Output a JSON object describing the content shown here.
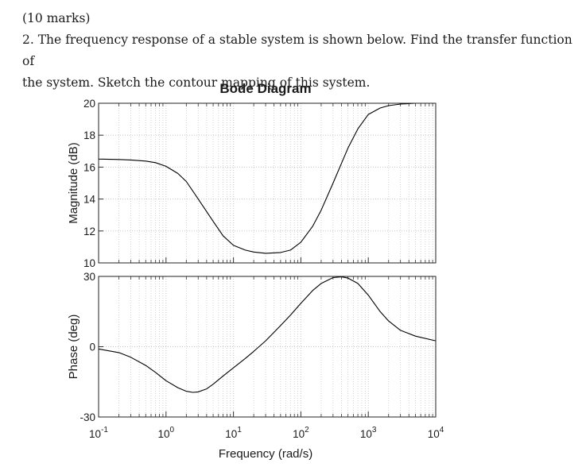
{
  "question": {
    "marks": "(10 marks)",
    "line1": "2. The frequency response of a stable system is shown below. Find the transfer function of",
    "line2": "the system. Sketch the contour mapping of this system."
  },
  "chart_data": {
    "type": "line",
    "title": "Bode Diagram",
    "xlabel": "Frequency (rad/s)",
    "xscale": "log",
    "xlim": [
      0.1,
      10000
    ],
    "x_ticks": [
      {
        "value": 0.1,
        "base": "10",
        "exp": "-1"
      },
      {
        "value": 1,
        "base": "10",
        "exp": "0"
      },
      {
        "value": 10,
        "base": "10",
        "exp": "1"
      },
      {
        "value": 100,
        "base": "10",
        "exp": "2"
      },
      {
        "value": 1000,
        "base": "10",
        "exp": "3"
      },
      {
        "value": 10000,
        "base": "10",
        "exp": "4"
      }
    ],
    "grid": true,
    "line_color": "#000000",
    "grid_color": "#c8c8c8",
    "panels": [
      {
        "ylabel": "Magnitude (dB)",
        "ylim": [
          10,
          20
        ],
        "yticks": [
          "10",
          "12",
          "14",
          "16",
          "18",
          "20"
        ],
        "tick_values": [
          10,
          12,
          14,
          16,
          18,
          20
        ],
        "x": [
          0.1,
          0.2,
          0.3,
          0.5,
          0.7,
          1,
          1.5,
          2,
          3,
          5,
          7,
          10,
          15,
          20,
          30,
          50,
          70,
          100,
          150,
          200,
          300,
          500,
          700,
          1000,
          1500,
          2000,
          3000,
          5000,
          10000
        ],
        "y": [
          16.5,
          16.48,
          16.45,
          16.38,
          16.28,
          16.05,
          15.6,
          15.1,
          14.0,
          12.6,
          11.7,
          11.1,
          10.8,
          10.68,
          10.6,
          10.65,
          10.8,
          11.3,
          12.3,
          13.3,
          15.0,
          17.2,
          18.4,
          19.3,
          19.7,
          19.85,
          19.95,
          20.0,
          20.0
        ]
      },
      {
        "ylabel": "Phase (deg)",
        "ylim": [
          -30,
          30
        ],
        "yticks": [
          "-30",
          "0",
          "30"
        ],
        "tick_values": [
          -30,
          0,
          30
        ],
        "x": [
          0.1,
          0.2,
          0.3,
          0.5,
          0.7,
          1,
          1.5,
          2,
          2.5,
          3,
          4,
          5,
          7,
          10,
          15,
          20,
          30,
          50,
          70,
          100,
          150,
          200,
          300,
          400,
          500,
          700,
          1000,
          1500,
          2000,
          3000,
          5000,
          10000
        ],
        "y": [
          -1,
          -2.5,
          -4.5,
          -8,
          -11,
          -14.5,
          -17.5,
          -19,
          -19.5,
          -19.3,
          -18,
          -16,
          -12.5,
          -9,
          -5,
          -2,
          2.5,
          9,
          13.5,
          18.5,
          24,
          27,
          29.5,
          29.8,
          29.3,
          27,
          22,
          15,
          11,
          7,
          4.5,
          2.5
        ]
      }
    ]
  }
}
